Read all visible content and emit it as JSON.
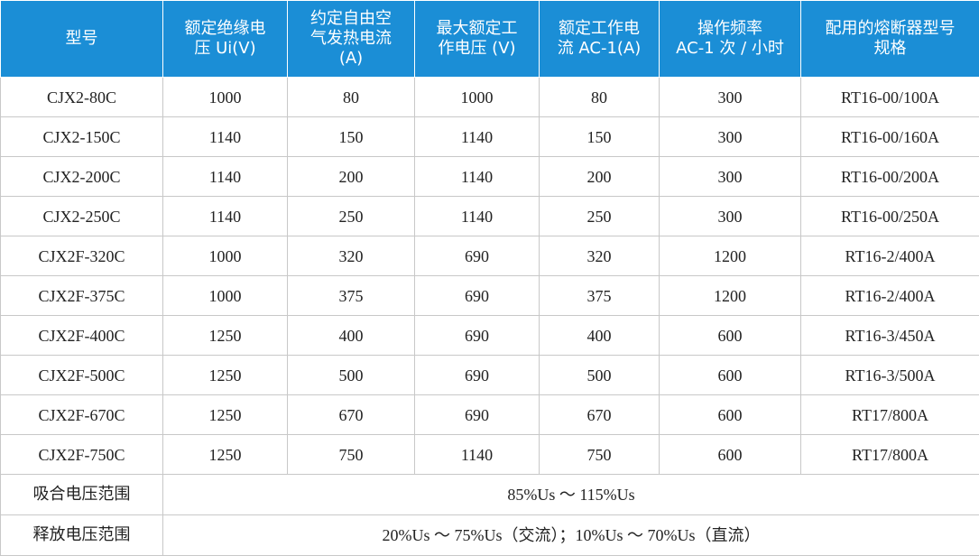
{
  "table": {
    "header": [
      [
        "型号"
      ],
      [
        "额定绝缘电",
        "压 Ui(V)"
      ],
      [
        "约定自由空",
        "气发热电流",
        "(A)"
      ],
      [
        "最大额定工",
        "作电压 (V)"
      ],
      [
        "额定工作电",
        "流 AC-1(A)"
      ],
      [
        "操作频率",
        "AC-1 次 / 小时"
      ],
      [
        "配用的熔断器型号",
        "规格"
      ]
    ],
    "rows": [
      [
        "CJX2-80C",
        "1000",
        "80",
        "1000",
        "80",
        "300",
        "RT16-00/100A"
      ],
      [
        "CJX2-150C",
        "1140",
        "150",
        "1140",
        "150",
        "300",
        "RT16-00/160A"
      ],
      [
        "CJX2-200C",
        "1140",
        "200",
        "1140",
        "200",
        "300",
        "RT16-00/200A"
      ],
      [
        "CJX2-250C",
        "1140",
        "250",
        "1140",
        "250",
        "300",
        "RT16-00/250A"
      ],
      [
        "CJX2F-320C",
        "1000",
        "320",
        "690",
        "320",
        "1200",
        "RT16-2/400A"
      ],
      [
        "CJX2F-375C",
        "1000",
        "375",
        "690",
        "375",
        "1200",
        "RT16-2/400A"
      ],
      [
        "CJX2F-400C",
        "1250",
        "400",
        "690",
        "400",
        "600",
        "RT16-3/450A"
      ],
      [
        "CJX2F-500C",
        "1250",
        "500",
        "690",
        "500",
        "600",
        "RT16-3/500A"
      ],
      [
        "CJX2F-670C",
        "1250",
        "670",
        "690",
        "670",
        "600",
        "RT17/800A"
      ],
      [
        "CJX2F-750C",
        "1250",
        "750",
        "1140",
        "750",
        "600",
        "RT17/800A"
      ]
    ],
    "footer": [
      [
        "吸合电压范围",
        "85%Us ～ 115%Us"
      ],
      [
        "释放电压范围",
        "20%Us ～ 75%Us（交流）；10%Us ～ 70%Us（直流）"
      ]
    ]
  }
}
